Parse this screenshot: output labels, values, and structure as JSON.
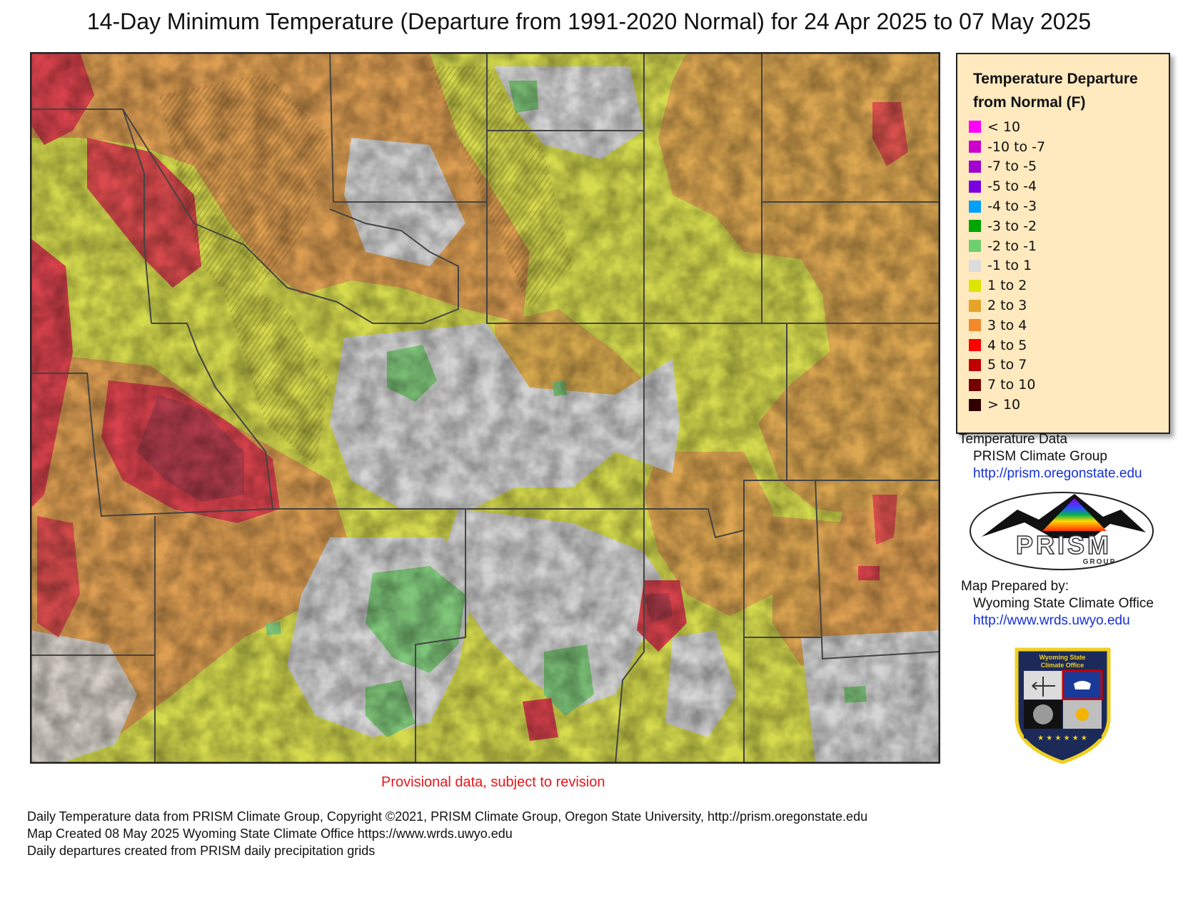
{
  "title": "14-Day Minimum Temperature (Departure from 1991-2020 Normal) for 24 Apr 2025 to 07 May 2025",
  "legend": {
    "title_line1": "Temperature Departure",
    "title_line2": "from Normal (F)",
    "items": [
      {
        "label": "< 10",
        "color": "#ff00ff"
      },
      {
        "label": "-10 to -7",
        "color": "#cc00cc"
      },
      {
        "label": "-7 to -5",
        "color": "#a000d0"
      },
      {
        "label": "-5 to -4",
        "color": "#7a00e0"
      },
      {
        "label": "-4 to -3",
        "color": "#00a0ff"
      },
      {
        "label": "-3 to -2",
        "color": "#00a600"
      },
      {
        "label": "-2 to -1",
        "color": "#6ecf6e"
      },
      {
        "label": "-1 to 1",
        "color": "#dcdcdc"
      },
      {
        "label": "1 to 2",
        "color": "#dde400"
      },
      {
        "label": "2 to 3",
        "color": "#e6a42a"
      },
      {
        "label": "3 to 4",
        "color": "#f08a2c"
      },
      {
        "label": "4 to 5",
        "color": "#ff0000"
      },
      {
        "label": "5 to 7",
        "color": "#c00000"
      },
      {
        "label": "7 to 10",
        "color": "#740000"
      },
      {
        "label": "> 10",
        "color": "#300000"
      }
    ]
  },
  "credits": {
    "temp_data_label": "Temperature Data",
    "temp_data_source": "PRISM Climate Group",
    "temp_data_url": "http://prism.oregonstate.edu",
    "prism_logo_text": "PRISM",
    "prism_logo_subtext": "GROUP",
    "prepared_by_label": "Map Prepared by:",
    "prepared_by_org": "Wyoming State Climate Office",
    "prepared_by_url": "http://www.wrds.uwyo.edu",
    "wsco_logo_line1": "Wyoming State",
    "wsco_logo_line2": "Climate Office"
  },
  "provisional_note": "Provisional data, subject to revision",
  "footer": {
    "line1": "Daily Temperature data from PRISM Climate Group, Copyright ©2021, PRISM Climate Group, Oregon State University, http://prism.oregonstate.edu",
    "line2": "Map Created 08 May 2025 Wyoming State Climate Office https://www.wrds.uwyo.edu",
    "line3": "Daily departures created from PRISM daily precipitation grids"
  }
}
